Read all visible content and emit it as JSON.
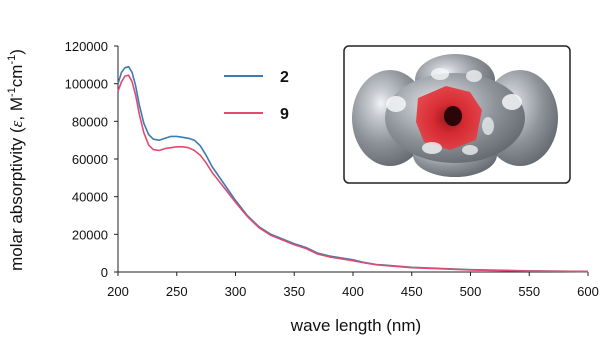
{
  "chart_data": {
    "type": "line",
    "title": "",
    "xlabel": "wave length (nm)",
    "ylabel_parts": {
      "before_epsilon": "molar absorptivity (",
      "epsilon": "ε",
      "before_sup1": ", M",
      "sup1": "-1",
      "before_sup2": "cm",
      "sup2": "-1",
      "after": ")"
    },
    "xlim": [
      200,
      600
    ],
    "ylim": [
      0,
      120000
    ],
    "x_ticks": [
      "200",
      "250",
      "300",
      "350",
      "400",
      "450",
      "500",
      "550",
      "600"
    ],
    "y_ticks": [
      "0",
      "20000",
      "40000",
      "60000",
      "80000",
      "100000",
      "120000"
    ],
    "grid": false,
    "legend_position": "top-center",
    "inset": {
      "description_icon": "electrostatic-potential-surface-icon",
      "colors": {
        "surface": "#8e9399",
        "highlight": "#e8ecef",
        "core": "#d8232a"
      }
    },
    "series": [
      {
        "name": "2",
        "color": "#3b7cb3",
        "x": [
          200,
          203,
          206,
          209,
          212,
          215,
          218,
          222,
          226,
          230,
          235,
          240,
          245,
          250,
          255,
          260,
          265,
          270,
          275,
          280,
          290,
          300,
          310,
          320,
          330,
          340,
          350,
          360,
          370,
          380,
          390,
          400,
          410,
          420,
          450,
          500,
          550,
          600
        ],
        "y": [
          100000,
          106000,
          108500,
          109000,
          106000,
          99000,
          89000,
          79000,
          73000,
          70500,
          70000,
          71000,
          72000,
          72000,
          71500,
          71000,
          70000,
          67000,
          62000,
          56000,
          47000,
          38000,
          30000,
          24000,
          20000,
          17500,
          15000,
          13000,
          10000,
          8500,
          7500,
          6500,
          5000,
          4000,
          2500,
          1200,
          600,
          300
        ]
      },
      {
        "name": "9",
        "color": "#e24a6f",
        "x": [
          200,
          203,
          206,
          209,
          212,
          215,
          218,
          222,
          226,
          230,
          235,
          240,
          245,
          250,
          255,
          260,
          265,
          270,
          275,
          280,
          290,
          300,
          310,
          320,
          330,
          340,
          350,
          360,
          370,
          380,
          390,
          400,
          410,
          420,
          450,
          500,
          550,
          600
        ],
        "y": [
          96000,
          101000,
          104000,
          104500,
          101000,
          94000,
          84000,
          74000,
          67500,
          65000,
          64500,
          65500,
          66000,
          66500,
          66500,
          66000,
          64500,
          62000,
          58000,
          53000,
          45000,
          37000,
          29500,
          23500,
          19500,
          17000,
          14500,
          12500,
          9500,
          8000,
          7000,
          6000,
          4800,
          3800,
          2300,
          1100,
          500,
          300
        ]
      }
    ]
  }
}
